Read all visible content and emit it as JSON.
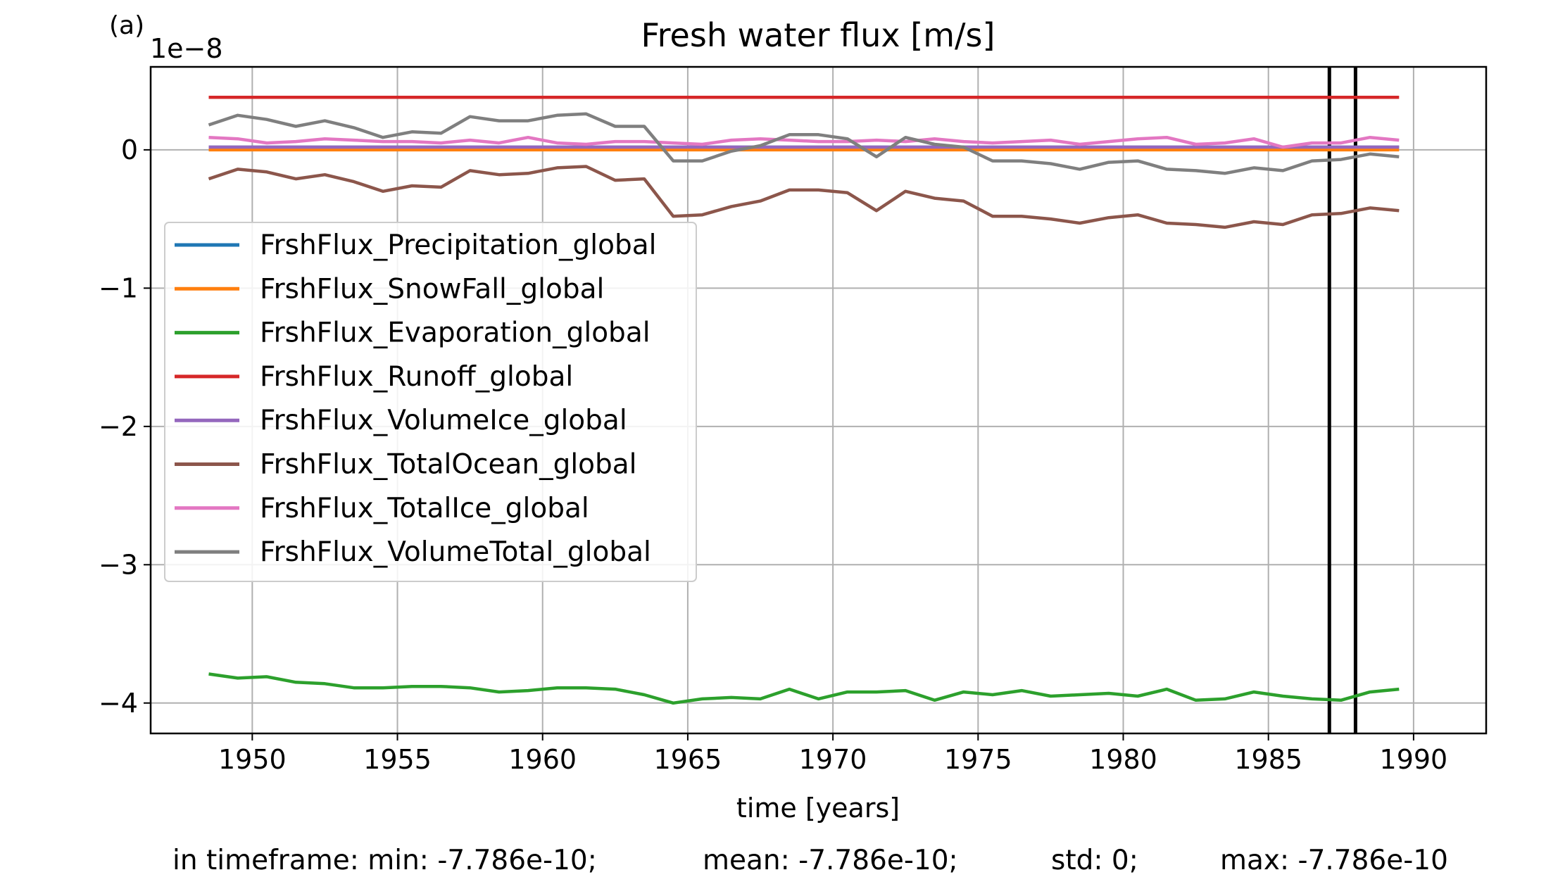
{
  "chart_data": {
    "type": "line",
    "panel_label": "(a)",
    "title": "Fresh water flux [m/s]",
    "xlabel": "time [years]",
    "ylabel": "",
    "y_multiplier": "1e−8",
    "xlim": [
      1946.5,
      1992.5
    ],
    "ylim": [
      -4.22,
      0.6
    ],
    "x_ticks": [
      1950,
      1955,
      1960,
      1965,
      1970,
      1975,
      1980,
      1985,
      1990
    ],
    "y_ticks": [
      0,
      -1,
      -2,
      -3,
      -4
    ],
    "y_tick_labels": [
      "0",
      "−1",
      "−2",
      "−3",
      "−4"
    ],
    "grid": true,
    "legend_position": "upper-left",
    "vertical_lines": [
      1987.1,
      1988.0
    ],
    "x": [
      1948.5,
      1949.5,
      1950.5,
      1951.5,
      1952.5,
      1953.5,
      1954.5,
      1955.5,
      1956.5,
      1957.5,
      1958.5,
      1959.5,
      1960.5,
      1961.5,
      1962.5,
      1963.5,
      1964.5,
      1965.5,
      1966.5,
      1967.5,
      1968.5,
      1969.5,
      1970.5,
      1971.5,
      1972.5,
      1973.5,
      1974.5,
      1975.5,
      1976.5,
      1977.5,
      1978.5,
      1979.5,
      1980.5,
      1981.5,
      1982.5,
      1983.5,
      1984.5,
      1985.5,
      1986.5,
      1987.5,
      1988.5,
      1989.5
    ],
    "series": [
      {
        "name": "FrshFlux_Precipitation_global",
        "color": "#1f77b4",
        "values": [
          0.02,
          0.02,
          0.02,
          0.02,
          0.02,
          0.02,
          0.02,
          0.02,
          0.02,
          0.02,
          0.02,
          0.02,
          0.02,
          0.02,
          0.02,
          0.02,
          0.02,
          0.02,
          0.02,
          0.02,
          0.02,
          0.02,
          0.02,
          0.02,
          0.02,
          0.02,
          0.02,
          0.02,
          0.02,
          0.02,
          0.02,
          0.02,
          0.02,
          0.02,
          0.02,
          0.02,
          0.02,
          0.02,
          0.02,
          0.02,
          0.02,
          0.02
        ]
      },
      {
        "name": "FrshFlux_SnowFall_global",
        "color": "#ff7f0e",
        "values": [
          0.0,
          0.0,
          0.0,
          0.0,
          0.0,
          0.0,
          0.0,
          0.0,
          0.0,
          0.0,
          0.0,
          0.0,
          0.0,
          0.0,
          0.0,
          0.0,
          0.0,
          0.0,
          0.0,
          0.0,
          0.0,
          0.0,
          0.0,
          0.0,
          0.0,
          0.0,
          0.0,
          0.0,
          0.0,
          0.0,
          0.0,
          0.0,
          0.0,
          0.0,
          0.0,
          0.0,
          0.0,
          0.0,
          0.0,
          0.0,
          0.0,
          0.0
        ]
      },
      {
        "name": "FrshFlux_Evaporation_global",
        "color": "#2ca02c",
        "values": [
          -3.79,
          -3.82,
          -3.81,
          -3.85,
          -3.86,
          -3.89,
          -3.89,
          -3.88,
          -3.88,
          -3.89,
          -3.92,
          -3.91,
          -3.89,
          -3.89,
          -3.9,
          -3.94,
          -4.0,
          -3.97,
          -3.96,
          -3.97,
          -3.9,
          -3.97,
          -3.92,
          -3.92,
          -3.91,
          -3.98,
          -3.92,
          -3.94,
          -3.91,
          -3.95,
          -3.94,
          -3.93,
          -3.95,
          -3.9,
          -3.98,
          -3.97,
          -3.92,
          -3.95,
          -3.97,
          -3.98,
          -3.92,
          -3.9
        ]
      },
      {
        "name": "FrshFlux_Runoff_global",
        "color": "#d62728",
        "values": [
          0.38,
          0.38,
          0.38,
          0.38,
          0.38,
          0.38,
          0.38,
          0.38,
          0.38,
          0.38,
          0.38,
          0.38,
          0.38,
          0.38,
          0.38,
          0.38,
          0.38,
          0.38,
          0.38,
          0.38,
          0.38,
          0.38,
          0.38,
          0.38,
          0.38,
          0.38,
          0.38,
          0.38,
          0.38,
          0.38,
          0.38,
          0.38,
          0.38,
          0.38,
          0.38,
          0.38,
          0.38,
          0.38,
          0.38,
          0.38,
          0.38,
          0.38
        ]
      },
      {
        "name": "FrshFlux_VolumeIce_global",
        "color": "#9467bd",
        "values": [
          0.02,
          0.02,
          0.02,
          0.02,
          0.02,
          0.02,
          0.02,
          0.02,
          0.02,
          0.02,
          0.02,
          0.02,
          0.02,
          0.02,
          0.02,
          0.02,
          0.02,
          0.02,
          0.02,
          0.02,
          0.02,
          0.02,
          0.02,
          0.02,
          0.02,
          0.02,
          0.02,
          0.02,
          0.02,
          0.02,
          0.02,
          0.02,
          0.02,
          0.02,
          0.02,
          0.02,
          0.02,
          0.02,
          0.02,
          0.02,
          0.02,
          0.02
        ]
      },
      {
        "name": "FrshFlux_TotalOcean_global",
        "color": "#8c564b",
        "values": [
          -0.21,
          -0.14,
          -0.16,
          -0.21,
          -0.18,
          -0.23,
          -0.3,
          -0.26,
          -0.27,
          -0.15,
          -0.18,
          -0.17,
          -0.13,
          -0.12,
          -0.22,
          -0.21,
          -0.48,
          -0.47,
          -0.41,
          -0.37,
          -0.29,
          -0.29,
          -0.31,
          -0.44,
          -0.3,
          -0.35,
          -0.37,
          -0.48,
          -0.48,
          -0.5,
          -0.53,
          -0.49,
          -0.47,
          -0.53,
          -0.54,
          -0.56,
          -0.52,
          -0.54,
          -0.47,
          -0.46,
          -0.42,
          -0.44
        ]
      },
      {
        "name": "FrshFlux_TotalIce_global",
        "color": "#e377c2",
        "values": [
          0.09,
          0.08,
          0.05,
          0.06,
          0.08,
          0.07,
          0.06,
          0.06,
          0.05,
          0.07,
          0.05,
          0.09,
          0.05,
          0.04,
          0.06,
          0.06,
          0.05,
          0.04,
          0.07,
          0.08,
          0.07,
          0.06,
          0.06,
          0.07,
          0.06,
          0.08,
          0.06,
          0.05,
          0.06,
          0.07,
          0.04,
          0.06,
          0.08,
          0.09,
          0.04,
          0.05,
          0.08,
          0.02,
          0.05,
          0.05,
          0.09,
          0.07
        ]
      },
      {
        "name": "FrshFlux_VolumeTotal_global",
        "color": "#7f7f7f",
        "values": [
          0.18,
          0.25,
          0.22,
          0.17,
          0.21,
          0.16,
          0.09,
          0.13,
          0.12,
          0.24,
          0.21,
          0.21,
          0.25,
          0.26,
          0.17,
          0.17,
          -0.08,
          -0.08,
          -0.01,
          0.03,
          0.11,
          0.11,
          0.08,
          -0.05,
          0.09,
          0.04,
          0.02,
          -0.08,
          -0.08,
          -0.1,
          -0.14,
          -0.09,
          -0.08,
          -0.14,
          -0.15,
          -0.17,
          -0.13,
          -0.15,
          -0.08,
          -0.07,
          -0.03,
          -0.05
        ]
      }
    ],
    "stats": {
      "min": "in timeframe: min: -7.786e-10;",
      "mean": "mean: -7.786e-10;",
      "std": "std: 0;",
      "max": "max: -7.786e-10"
    }
  }
}
